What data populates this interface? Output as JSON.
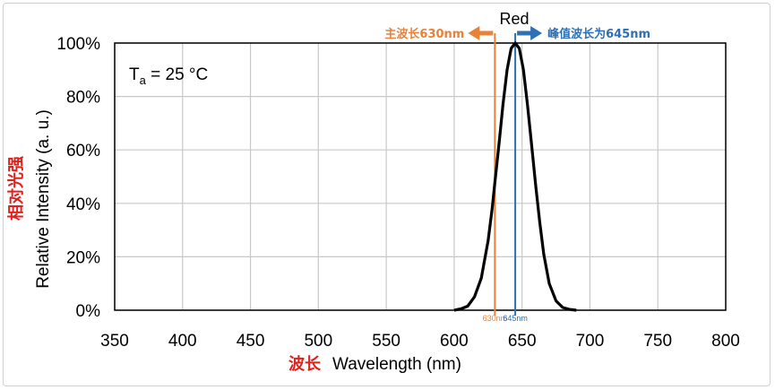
{
  "chart_data": {
    "type": "line",
    "xlabel_cn": "波长",
    "xlabel": "Wavelength (nm)",
    "ylabel_cn": "相对光强",
    "ylabel": "Relative Intensity (a. u.)",
    "xlim": [
      350,
      800
    ],
    "ylim": [
      0,
      100
    ],
    "x_ticks": [
      350,
      400,
      450,
      500,
      550,
      600,
      650,
      700,
      750,
      800
    ],
    "y_ticks": [
      0,
      20,
      40,
      60,
      80,
      100
    ],
    "y_tick_labels": [
      "0%",
      "20%",
      "40%",
      "60%",
      "80%",
      "100%"
    ],
    "grid": true,
    "condition": {
      "symbol": "T",
      "subscript": "a",
      "rest": " = 25 °C"
    },
    "series": [
      {
        "name": "Red",
        "color": "#000000",
        "x": [
          600,
          605,
          610,
          615,
          620,
          625,
          628,
          630,
          633,
          636,
          639,
          642,
          645,
          648,
          651,
          654,
          657,
          660,
          663,
          666,
          670,
          675,
          680,
          685,
          690
        ],
        "y": [
          0,
          0.5,
          1.5,
          5,
          12,
          26,
          38,
          48,
          62,
          77,
          90,
          98,
          100,
          98,
          90,
          77,
          62,
          47,
          33,
          21,
          10,
          3.5,
          1,
          0.3,
          0
        ]
      }
    ],
    "annotations": {
      "dominant": {
        "x": 630,
        "label": "主波长630nm",
        "tick_label": "630nm",
        "color": "#e8823a",
        "arrow": "left"
      },
      "peak": {
        "x": 645,
        "label": "峰值波长为645nm",
        "tick_label": "645nm",
        "color": "#2f6fb3",
        "arrow": "right"
      }
    }
  }
}
